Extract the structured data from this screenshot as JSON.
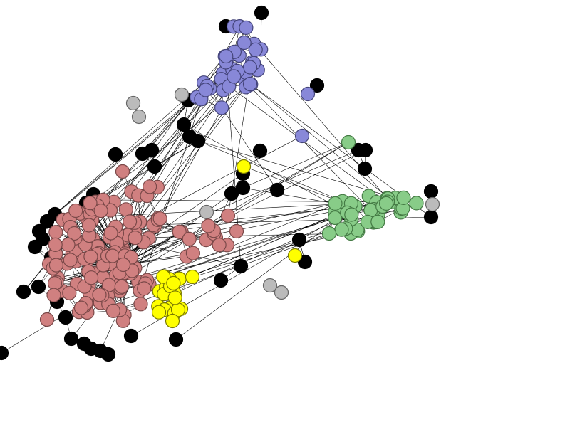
{
  "diagram": {
    "type": "network-graph",
    "edge_color": "#000000",
    "communities": [
      {
        "name": "pink",
        "fill": "#d08080",
        "stroke": "#7a4848",
        "count": 150
      },
      {
        "name": "blue",
        "fill": "#8888d8",
        "stroke": "#44447a",
        "count": 36
      },
      {
        "name": "green",
        "fill": "#88cc88",
        "stroke": "#447a44",
        "count": 36
      },
      {
        "name": "yellow",
        "fill": "#ffff00",
        "stroke": "#7a7a00",
        "count": 20
      },
      {
        "name": "black",
        "fill": "#000000",
        "stroke": "#000000",
        "count": 55
      },
      {
        "name": "gray",
        "fill": "#bbbbbb",
        "stroke": "#666666",
        "count": 8
      }
    ]
  }
}
